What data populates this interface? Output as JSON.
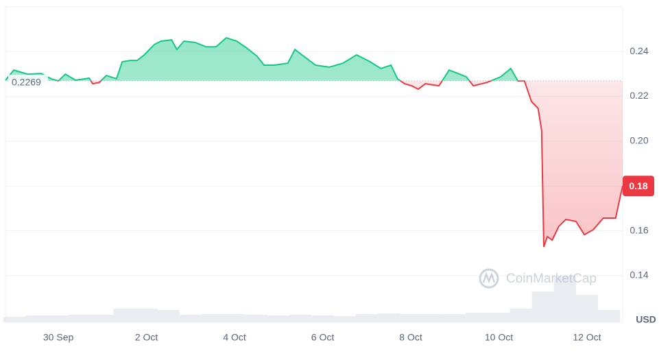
{
  "chart_data": {
    "type": "line",
    "x": [
      -1.2,
      -1.01,
      -0.7,
      -0.39,
      -0.16,
      0,
      0.16,
      0.39,
      0.7,
      0.78,
      0.93,
      1.09,
      1.32,
      1.45,
      1.63,
      1.79,
      1.95,
      2.18,
      2.33,
      2.57,
      2.69,
      2.85,
      3.11,
      3.35,
      3.58,
      3.81,
      4.05,
      4.28,
      4.51,
      4.67,
      4.9,
      5.21,
      5.37,
      5.53,
      5.84,
      6.15,
      6.46,
      6.77,
      7.08,
      7.32,
      7.55,
      7.7,
      7.86,
      8.02,
      8.17,
      8.33,
      8.64,
      8.87,
      9.11,
      9.26,
      9.42,
      9.73,
      10.04,
      10.27,
      10.43,
      10.58,
      10.74,
      10.89,
      10.97,
      11.02,
      11.1,
      11.21,
      11.36,
      11.52,
      11.75,
      11.94,
      12.14,
      12.37,
      12.65,
      12.76,
      12.81
    ],
    "values": [
      0.2272,
      0.2317,
      0.2299,
      0.2302,
      0.2278,
      0.2269,
      0.2299,
      0.2272,
      0.2281,
      0.2256,
      0.2262,
      0.2293,
      0.2278,
      0.2354,
      0.236,
      0.236,
      0.2385,
      0.2431,
      0.2446,
      0.2452,
      0.2409,
      0.2446,
      0.244,
      0.2421,
      0.2421,
      0.2461,
      0.2446,
      0.2415,
      0.2379,
      0.2339,
      0.2339,
      0.2348,
      0.2409,
      0.2385,
      0.2339,
      0.233,
      0.2348,
      0.2385,
      0.2354,
      0.2324,
      0.2339,
      0.2278,
      0.2256,
      0.2247,
      0.2232,
      0.2256,
      0.2247,
      0.2317,
      0.2299,
      0.2287,
      0.2247,
      0.2262,
      0.2287,
      0.2324,
      0.2269,
      0.2269,
      0.2177,
      0.2146,
      0.2048,
      0.1528,
      0.1574,
      0.1559,
      0.162,
      0.1651,
      0.1642,
      0.1583,
      0.1605,
      0.1657,
      0.1657,
      0.1758,
      0.18
    ],
    "baseline": 0.2269,
    "up_color": "#16c784",
    "down_color": "#ea3943",
    "xlim": [
      -1.2,
      12.81
    ],
    "xticks": [
      {
        "value": 0,
        "label": "30 Sep"
      },
      {
        "value": 2,
        "label": "2 Oct"
      },
      {
        "value": 4,
        "label": "4 Oct"
      },
      {
        "value": 6,
        "label": "6 Oct"
      },
      {
        "value": 8,
        "label": "8 Oct"
      },
      {
        "value": 10,
        "label": "10 Oct"
      },
      {
        "value": 12,
        "label": "12 Oct"
      }
    ],
    "ylim": [
      0.1192,
      0.2599
    ],
    "yticks": [
      0.14,
      0.16,
      0.18,
      {
        "value": 0.2,
        "label": "0.20"
      },
      0.22,
      0.24
    ],
    "grid": true,
    "currency": "USD",
    "watermark": "CoinMarketCap",
    "volume": {
      "color": "#e9ecf1",
      "ylim": [
        0,
        100
      ],
      "x": [
        -1,
        -0.5,
        0,
        0.5,
        1,
        1.5,
        2,
        2.5,
        3,
        3.5,
        4,
        4.5,
        5,
        5.5,
        6,
        6.5,
        7,
        7.5,
        8,
        8.5,
        9,
        9.5,
        10,
        10.5,
        11,
        11.5,
        12,
        12.5
      ],
      "values": [
        8,
        10,
        10,
        11,
        11,
        20,
        20,
        18,
        11,
        12,
        12,
        11,
        10,
        11,
        10,
        9,
        12,
        13,
        12,
        12,
        12,
        14,
        14,
        20,
        45,
        68,
        40,
        18
      ]
    }
  }
}
